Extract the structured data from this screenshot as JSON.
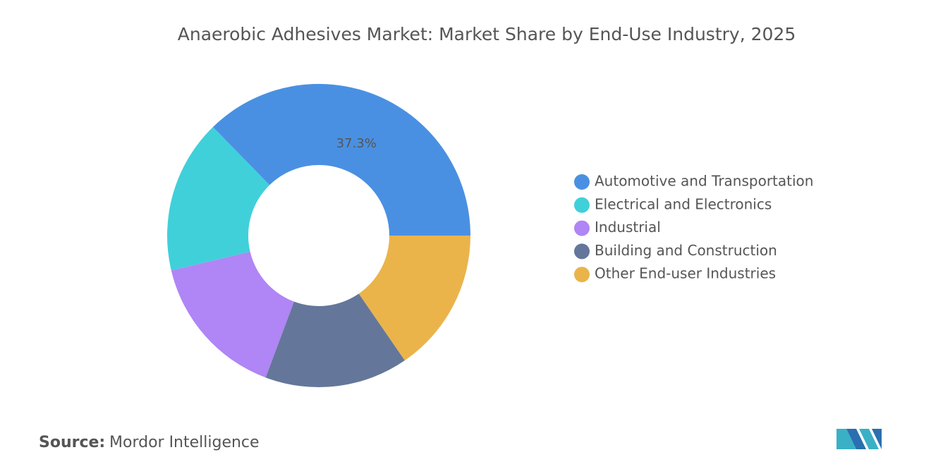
{
  "chart_data": {
    "type": "donut",
    "title": "Anaerobic Adhesives Market: Market Share by End-Use Industry, 2025",
    "categories": [
      "Automotive and Transportation",
      "Electrical and Electronics",
      "Industrial",
      "Building and Construction",
      "Other End-user Industries"
    ],
    "values": [
      37.3,
      16.4,
      15.6,
      15.3,
      15.4
    ],
    "value_labels": [
      "37.3%",
      null,
      null,
      null,
      null
    ],
    "colors": [
      "#4a90e2",
      "#40d0da",
      "#b085f5",
      "#64779a",
      "#eab44b"
    ],
    "legend": "right",
    "source_label": "Source:",
    "source": "Mordor Intelligence"
  }
}
